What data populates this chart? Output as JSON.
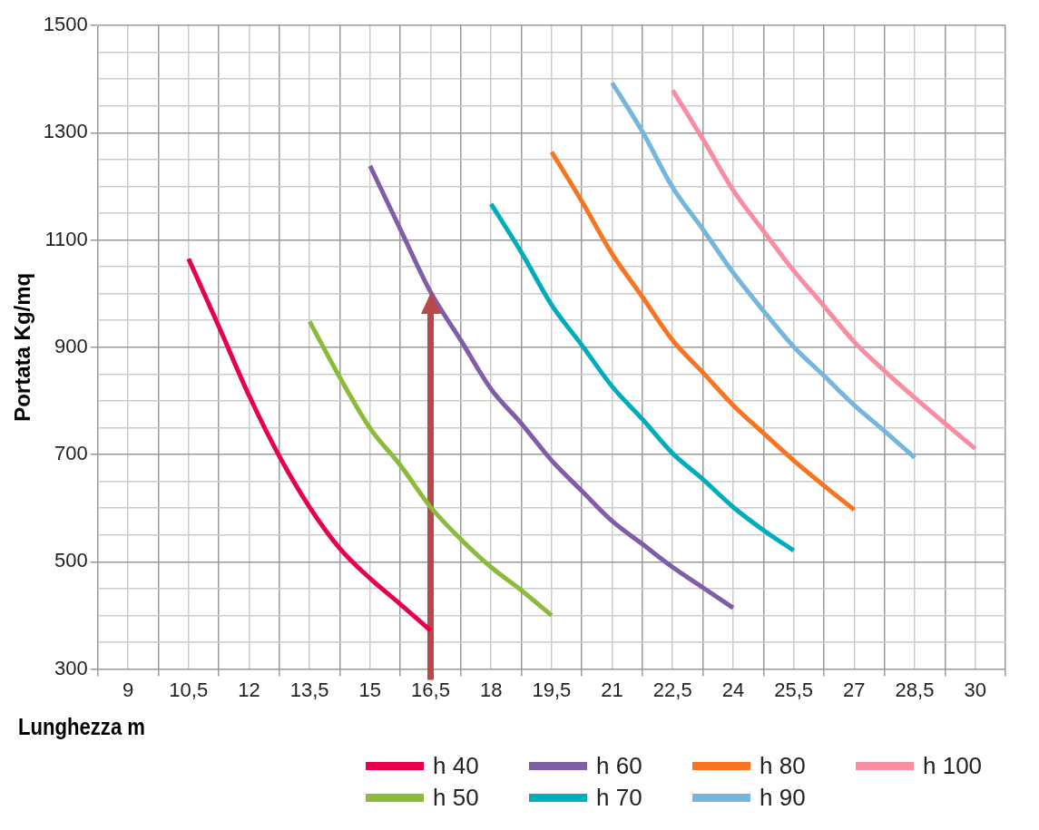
{
  "chart_data": {
    "type": "line",
    "xlabel": "Lunghezza m",
    "ylabel": "Portata Kg/mq",
    "xlim": [
      8.25,
      30.75
    ],
    "xticks": [
      {
        "value": 8.25,
        "label": null
      },
      9,
      {
        "value": 9.75,
        "label": null
      },
      {
        "value": 10.5,
        "label": "10,5"
      },
      {
        "value": 11.25,
        "label": null
      },
      12,
      {
        "value": 12.75,
        "label": null
      },
      {
        "value": 13.5,
        "label": "13,5"
      },
      {
        "value": 14.25,
        "label": null
      },
      15,
      {
        "value": 15.75,
        "label": null
      },
      {
        "value": 16.5,
        "label": "16,5"
      },
      {
        "value": 17.25,
        "label": null
      },
      18,
      {
        "value": 18.75,
        "label": null
      },
      {
        "value": 19.5,
        "label": "19,5"
      },
      {
        "value": 20.25,
        "label": null
      },
      21,
      {
        "value": 21.75,
        "label": null
      },
      {
        "value": 22.5,
        "label": "22,5"
      },
      {
        "value": 23.25,
        "label": null
      },
      24,
      {
        "value": 24.75,
        "label": null
      },
      {
        "value": 25.5,
        "label": "25,5"
      },
      {
        "value": 26.25,
        "label": null
      },
      27,
      {
        "value": 27.75,
        "label": null
      },
      {
        "value": 28.5,
        "label": "28,5"
      },
      {
        "value": 29.25,
        "label": null
      },
      30,
      {
        "value": 30.75,
        "label": null
      }
    ],
    "ylim": [
      300,
      1500
    ],
    "yticks": [
      300,
      {
        "value": 350,
        "label": null
      },
      {
        "value": 400,
        "label": null
      },
      {
        "value": 450,
        "label": null
      },
      500,
      {
        "value": 550,
        "label": null
      },
      {
        "value": 600,
        "label": null
      },
      {
        "value": 650,
        "label": null
      },
      700,
      {
        "value": 750,
        "label": null
      },
      {
        "value": 800,
        "label": null
      },
      {
        "value": 850,
        "label": null
      },
      900,
      {
        "value": 950,
        "label": null
      },
      {
        "value": 1000,
        "label": null
      },
      {
        "value": 1050,
        "label": null
      },
      1100,
      {
        "value": 1150,
        "label": null
      },
      {
        "value": 1200,
        "label": null
      },
      {
        "value": 1250,
        "label": null
      },
      1300,
      {
        "value": 1350,
        "label": null
      },
      {
        "value": 1400,
        "label": null
      },
      {
        "value": 1450,
        "label": null
      },
      1500
    ],
    "grid": true,
    "legend": "bottom",
    "marker": "none",
    "line_style": "solid",
    "ref_lines": [
      {
        "axis": "x",
        "value": 16.5,
        "color": "#b94848"
      }
    ],
    "series": [
      {
        "name": "h 40",
        "color": "#e8004f",
        "x": [
          10.5,
          11.25,
          12,
          12.75,
          13.5,
          14.25,
          15,
          15.75,
          16.5
        ],
        "values": [
          1065,
          939,
          810,
          697,
          602,
          525,
          469,
          421,
          372
        ]
      },
      {
        "name": "h 50",
        "color": "#8cbb3c",
        "x": [
          13.5,
          14.25,
          15,
          15.75,
          16.5,
          17.25,
          18,
          18.75,
          19.5
        ],
        "values": [
          948,
          844,
          749,
          680,
          602,
          542,
          490,
          447,
          400
        ]
      },
      {
        "name": "h 60",
        "color": "#7f5ea8",
        "x": [
          15,
          15.75,
          16.5,
          17.25,
          18,
          18.75,
          19.5,
          20.25,
          21,
          21.75,
          22.5,
          23.25,
          24
        ],
        "values": [
          1238,
          1120,
          1003,
          913,
          822,
          758,
          689,
          632,
          576,
          533,
          490,
          452,
          414
        ]
      },
      {
        "name": "h 70",
        "color": "#00adbb",
        "x": [
          18,
          18.75,
          19.5,
          20.25,
          21,
          21.75,
          22.5,
          23.25,
          24,
          24.75,
          25.5
        ],
        "values": [
          1167,
          1077,
          979,
          904,
          827,
          766,
          702,
          654,
          602,
          559,
          521
        ]
      },
      {
        "name": "h 80",
        "color": "#f97420",
        "x": [
          19.5,
          20.25,
          21,
          21.75,
          22.5,
          23.25,
          24,
          24.75,
          25.5,
          26.25,
          27
        ],
        "values": [
          1264,
          1172,
          1074,
          994,
          913,
          853,
          792,
          740,
          689,
          642,
          597
        ]
      },
      {
        "name": "h 90",
        "color": "#75b7dc",
        "x": [
          21,
          21.75,
          22.5,
          23.25,
          24,
          24.75,
          25.5,
          26.25,
          27,
          27.75,
          28.5
        ],
        "values": [
          1393,
          1302,
          1198,
          1120,
          1039,
          968,
          901,
          847,
          792,
          744,
          694
        ]
      },
      {
        "name": "h 100",
        "color": "#f98ca0",
        "x": [
          22.5,
          23.25,
          24,
          24.75,
          25.5,
          26.25,
          27,
          27.75,
          28.5,
          29.25,
          30
        ],
        "values": [
          1379,
          1288,
          1193,
          1117,
          1043,
          977,
          910,
          856,
          806,
          758,
          711
        ]
      }
    ]
  }
}
